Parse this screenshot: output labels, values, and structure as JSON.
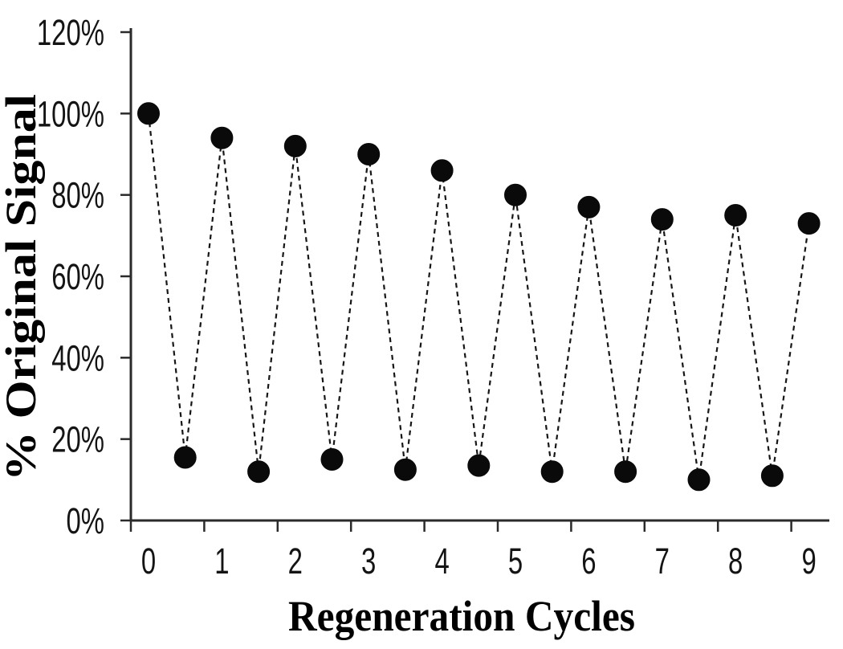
{
  "chart_data": {
    "type": "line",
    "title": "",
    "xlabel": "Regeneration Cycles",
    "ylabel": "% Original Signal",
    "x": [
      0,
      0.5,
      1,
      1.5,
      2,
      2.5,
      3,
      3.5,
      4,
      4.5,
      5,
      5.5,
      6,
      6.5,
      7,
      7.5,
      8,
      8.5,
      9
    ],
    "y": [
      100,
      15.5,
      94,
      12,
      92,
      15,
      90,
      12.5,
      86,
      13.5,
      80,
      12,
      77,
      12,
      74,
      10,
      75,
      11,
      73
    ],
    "ylim": [
      0,
      120
    ],
    "xlim": [
      0,
      9
    ],
    "y_tick_values": [
      0,
      20,
      40,
      60,
      80,
      100,
      120
    ],
    "y_tick_labels": [
      "0%",
      "20%",
      "40%",
      "60%",
      "80%",
      "100%",
      "120%"
    ],
    "x_tick_labels": [
      "0",
      "1",
      "2",
      "3",
      "4",
      "5",
      "6",
      "7",
      "8",
      "9"
    ],
    "marker": "filled-circle",
    "line_style": "dashed",
    "series_color": "#000000",
    "background_color": "#ffffff",
    "grid": false,
    "legend": "none"
  }
}
